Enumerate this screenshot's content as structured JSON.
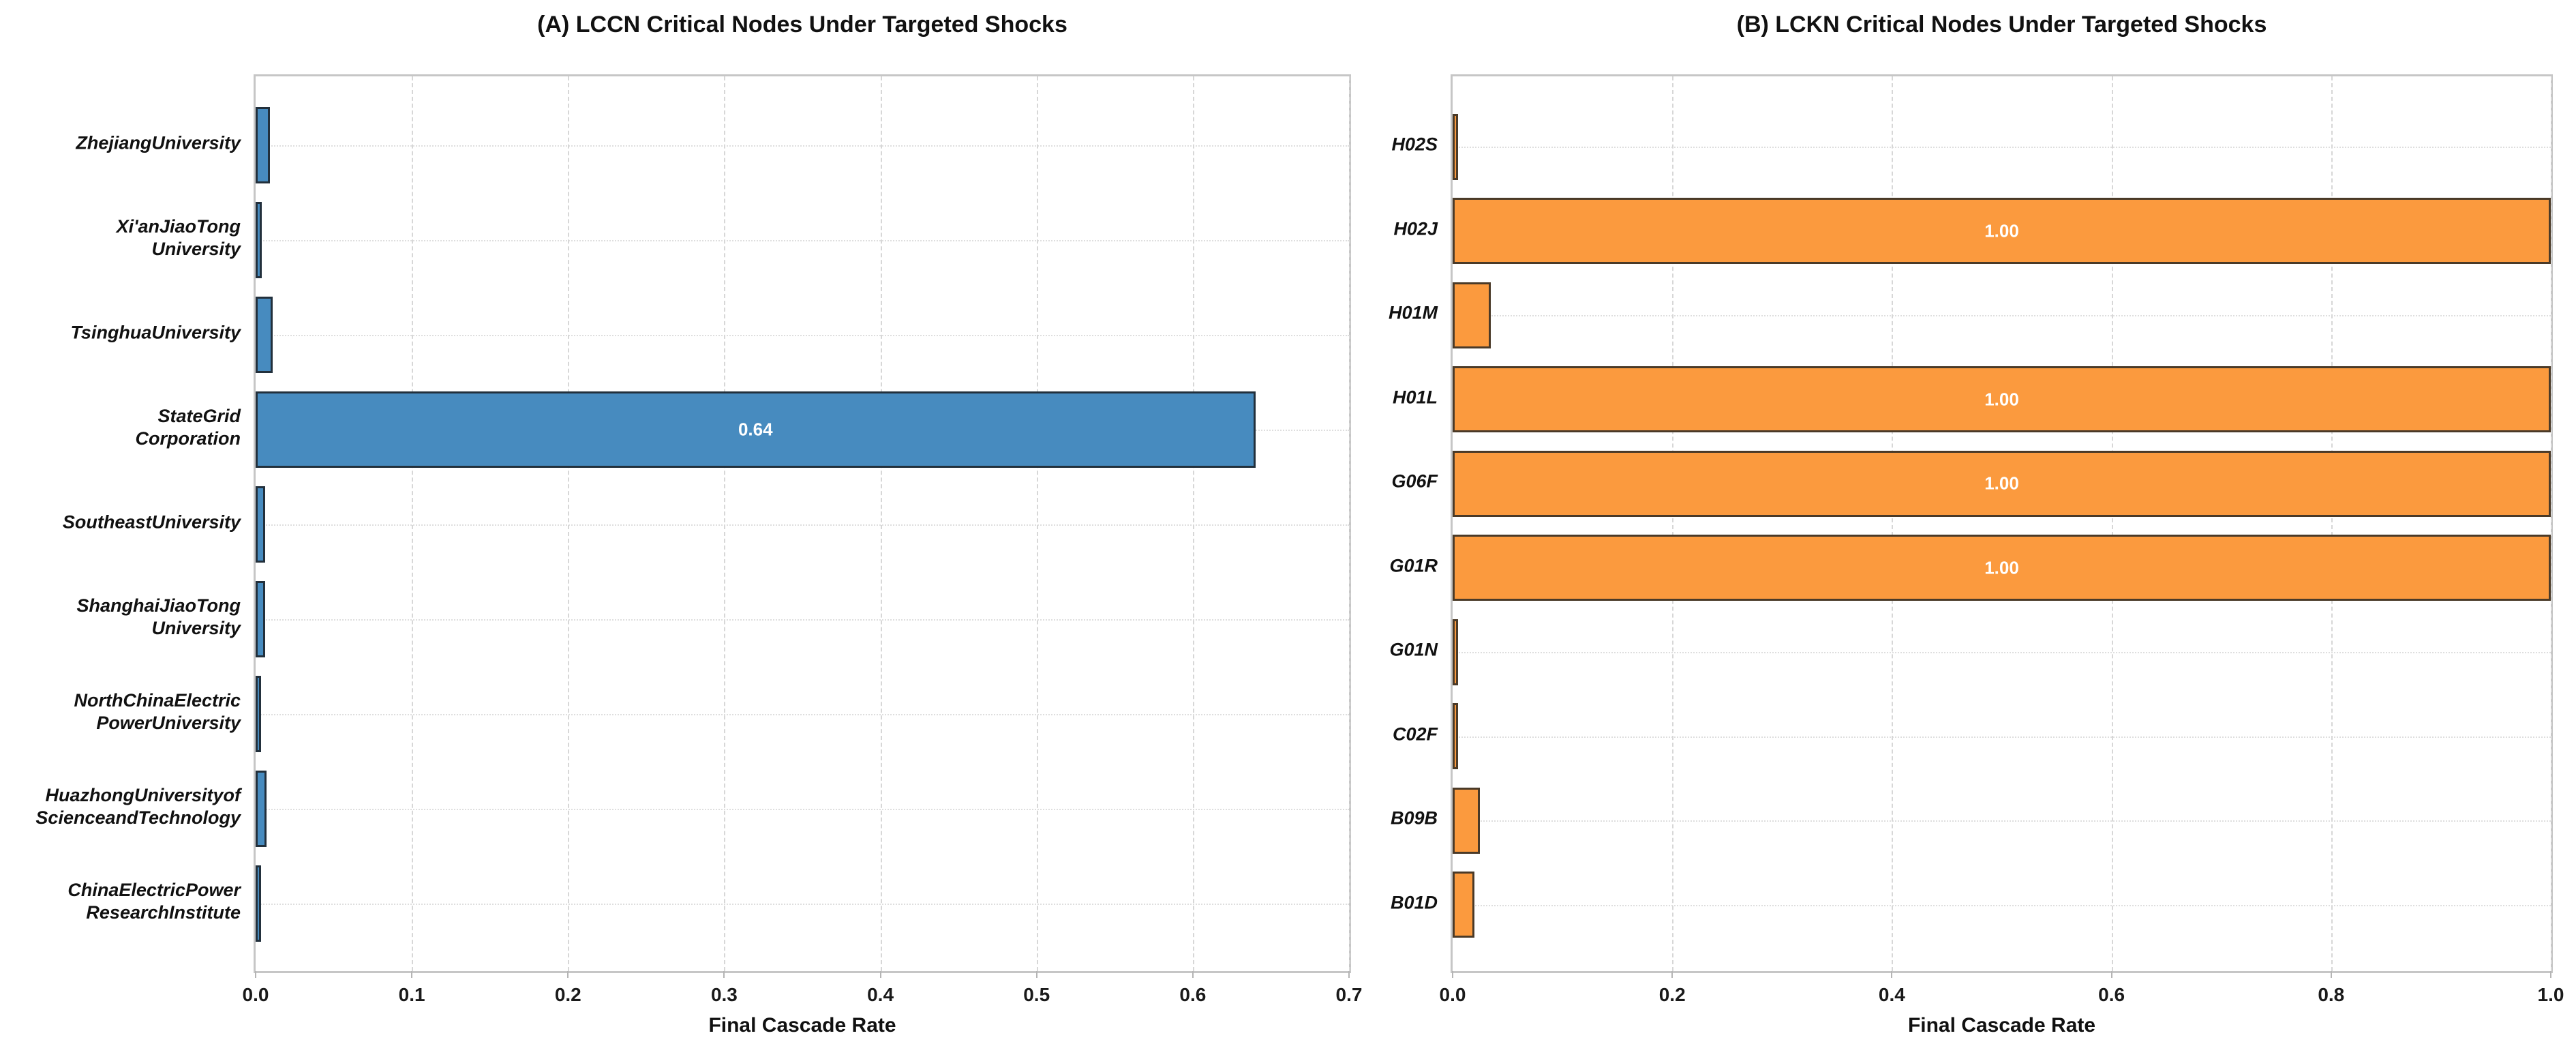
{
  "figure": {
    "background": "#ffffff",
    "text_color": "#111111"
  },
  "chart_data": [
    {
      "type": "bar",
      "orientation": "horizontal",
      "panel": "A",
      "title": "(A) LCCN Critical Nodes Under Targeted Shocks",
      "xlabel": "Final Cascade Rate",
      "xlim": [
        0.0,
        0.7
      ],
      "xtick_values": [
        0.0,
        0.1,
        0.2,
        0.3,
        0.4,
        0.5,
        0.6,
        0.7
      ],
      "xtick_labels": [
        "0.0",
        "0.1",
        "0.2",
        "0.3",
        "0.4",
        "0.5",
        "0.6",
        "0.7"
      ],
      "grid": {
        "vertical": "dashed",
        "horizontal": "dotted"
      },
      "categories": [
        [
          "ZhejiangUniversity"
        ],
        [
          "Xi'anJiaoTong",
          "University"
        ],
        [
          "TsinghuaUniversity"
        ],
        [
          "StateGrid",
          "Corporation"
        ],
        [
          "SoutheastUniversity"
        ],
        [
          "ShanghaiJiaoTong",
          "University"
        ],
        [
          "NorthChinaElectric",
          "PowerUniversity"
        ],
        [
          "HuazhongUniversityof",
          "ScienceandTechnology"
        ],
        [
          "ChinaElectricPower",
          "ResearchInstitute"
        ]
      ],
      "values": [
        0.009,
        0.004,
        0.011,
        0.64,
        0.006,
        0.006,
        0.002,
        0.007,
        0.002
      ],
      "bar_labels": [
        "",
        "",
        "",
        "0.64",
        "",
        "",
        "",
        "",
        ""
      ],
      "colors": {
        "fill": "#478bbf",
        "edge": "#22303c",
        "value_label": "#ffffff"
      }
    },
    {
      "type": "bar",
      "orientation": "horizontal",
      "panel": "B",
      "title": "(B) LCKN Critical Nodes Under Targeted Shocks",
      "xlabel": "Final Cascade Rate",
      "xlim": [
        0.0,
        1.0
      ],
      "xtick_values": [
        0.0,
        0.2,
        0.4,
        0.6,
        0.8,
        1.0
      ],
      "xtick_labels": [
        "0.0",
        "0.2",
        "0.4",
        "0.6",
        "0.8",
        "1.0"
      ],
      "grid": {
        "vertical": "dashed",
        "horizontal": "dotted"
      },
      "categories": [
        [
          "H02S"
        ],
        [
          "H02J"
        ],
        [
          "H01M"
        ],
        [
          "H01L"
        ],
        [
          "G06F"
        ],
        [
          "G01R"
        ],
        [
          "G01N"
        ],
        [
          "C02F"
        ],
        [
          "B09B"
        ],
        [
          "B01D"
        ]
      ],
      "values": [
        0.003,
        1.0,
        0.035,
        1.0,
        1.0,
        1.0,
        0.001,
        0.005,
        0.025,
        0.02
      ],
      "bar_labels": [
        "",
        "1.00",
        "",
        "1.00",
        "1.00",
        "1.00",
        "",
        "",
        "",
        ""
      ],
      "colors": {
        "fill": "#fb9a3e",
        "edge": "#4a3a28",
        "value_label": "#ffffff"
      }
    }
  ]
}
